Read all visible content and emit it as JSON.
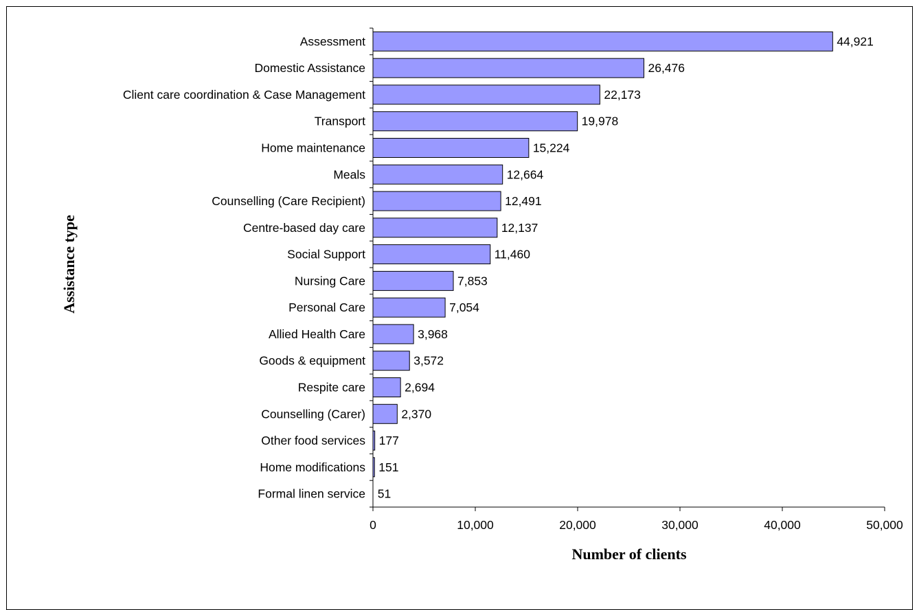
{
  "chart_data": {
    "type": "bar",
    "orientation": "horizontal",
    "title": "",
    "xlabel": "Number of clients",
    "ylabel": "Assistance type",
    "xlim": [
      0,
      50000
    ],
    "xticks": [
      0,
      10000,
      20000,
      30000,
      40000,
      50000
    ],
    "xtick_labels": [
      "0",
      "10,000",
      "20,000",
      "30,000",
      "40,000",
      "50,000"
    ],
    "grid": false,
    "bar_color": "#9999FF",
    "bar_edge_color": "#000000",
    "categories": [
      "Assessment",
      "Domestic Assistance",
      "Client care coordination & Case Management",
      "Transport",
      "Home maintenance",
      "Meals",
      "Counselling (Care Recipient)",
      "Centre-based day care",
      "Social Support",
      "Nursing Care",
      "Personal Care",
      "Allied Health Care",
      "Goods & equipment",
      "Respite care",
      "Counselling (Carer)",
      "Other food services",
      "Home modifications",
      "Formal linen service"
    ],
    "values": [
      44921,
      26476,
      22173,
      19978,
      15224,
      12664,
      12491,
      12137,
      11460,
      7853,
      7054,
      3968,
      3572,
      2694,
      2370,
      177,
      151,
      51
    ],
    "value_labels": [
      "44,921",
      "26,476",
      "22,173",
      "19,978",
      "15,224",
      "12,664",
      "12,491",
      "12,137",
      "11,460",
      "7,853",
      "7,054",
      "3,968",
      "3,572",
      "2,694",
      "2,370",
      "177",
      "151",
      "51"
    ]
  }
}
